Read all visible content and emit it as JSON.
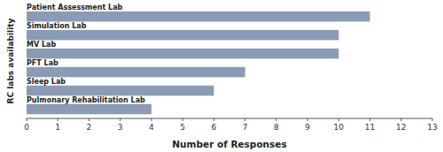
{
  "chart_data": {
    "type": "bar",
    "orientation": "horizontal",
    "categories": [
      "Patient Assessment Lab",
      "Simulation Lab",
      "MV Lab",
      "PFT Lab",
      "Sleep Lab",
      "Pulmonary Rehabilitation Lab"
    ],
    "values": [
      11,
      10,
      10,
      7,
      6,
      4
    ],
    "color": "#8A9BB5",
    "xlabel": "Number of Responses",
    "ylabel": "RC labs availability",
    "xlim": [
      0,
      13
    ],
    "xticks": [
      0,
      1,
      2,
      3,
      4,
      5,
      6,
      7,
      8,
      9,
      10,
      11,
      12,
      13
    ],
    "grid": false
  }
}
